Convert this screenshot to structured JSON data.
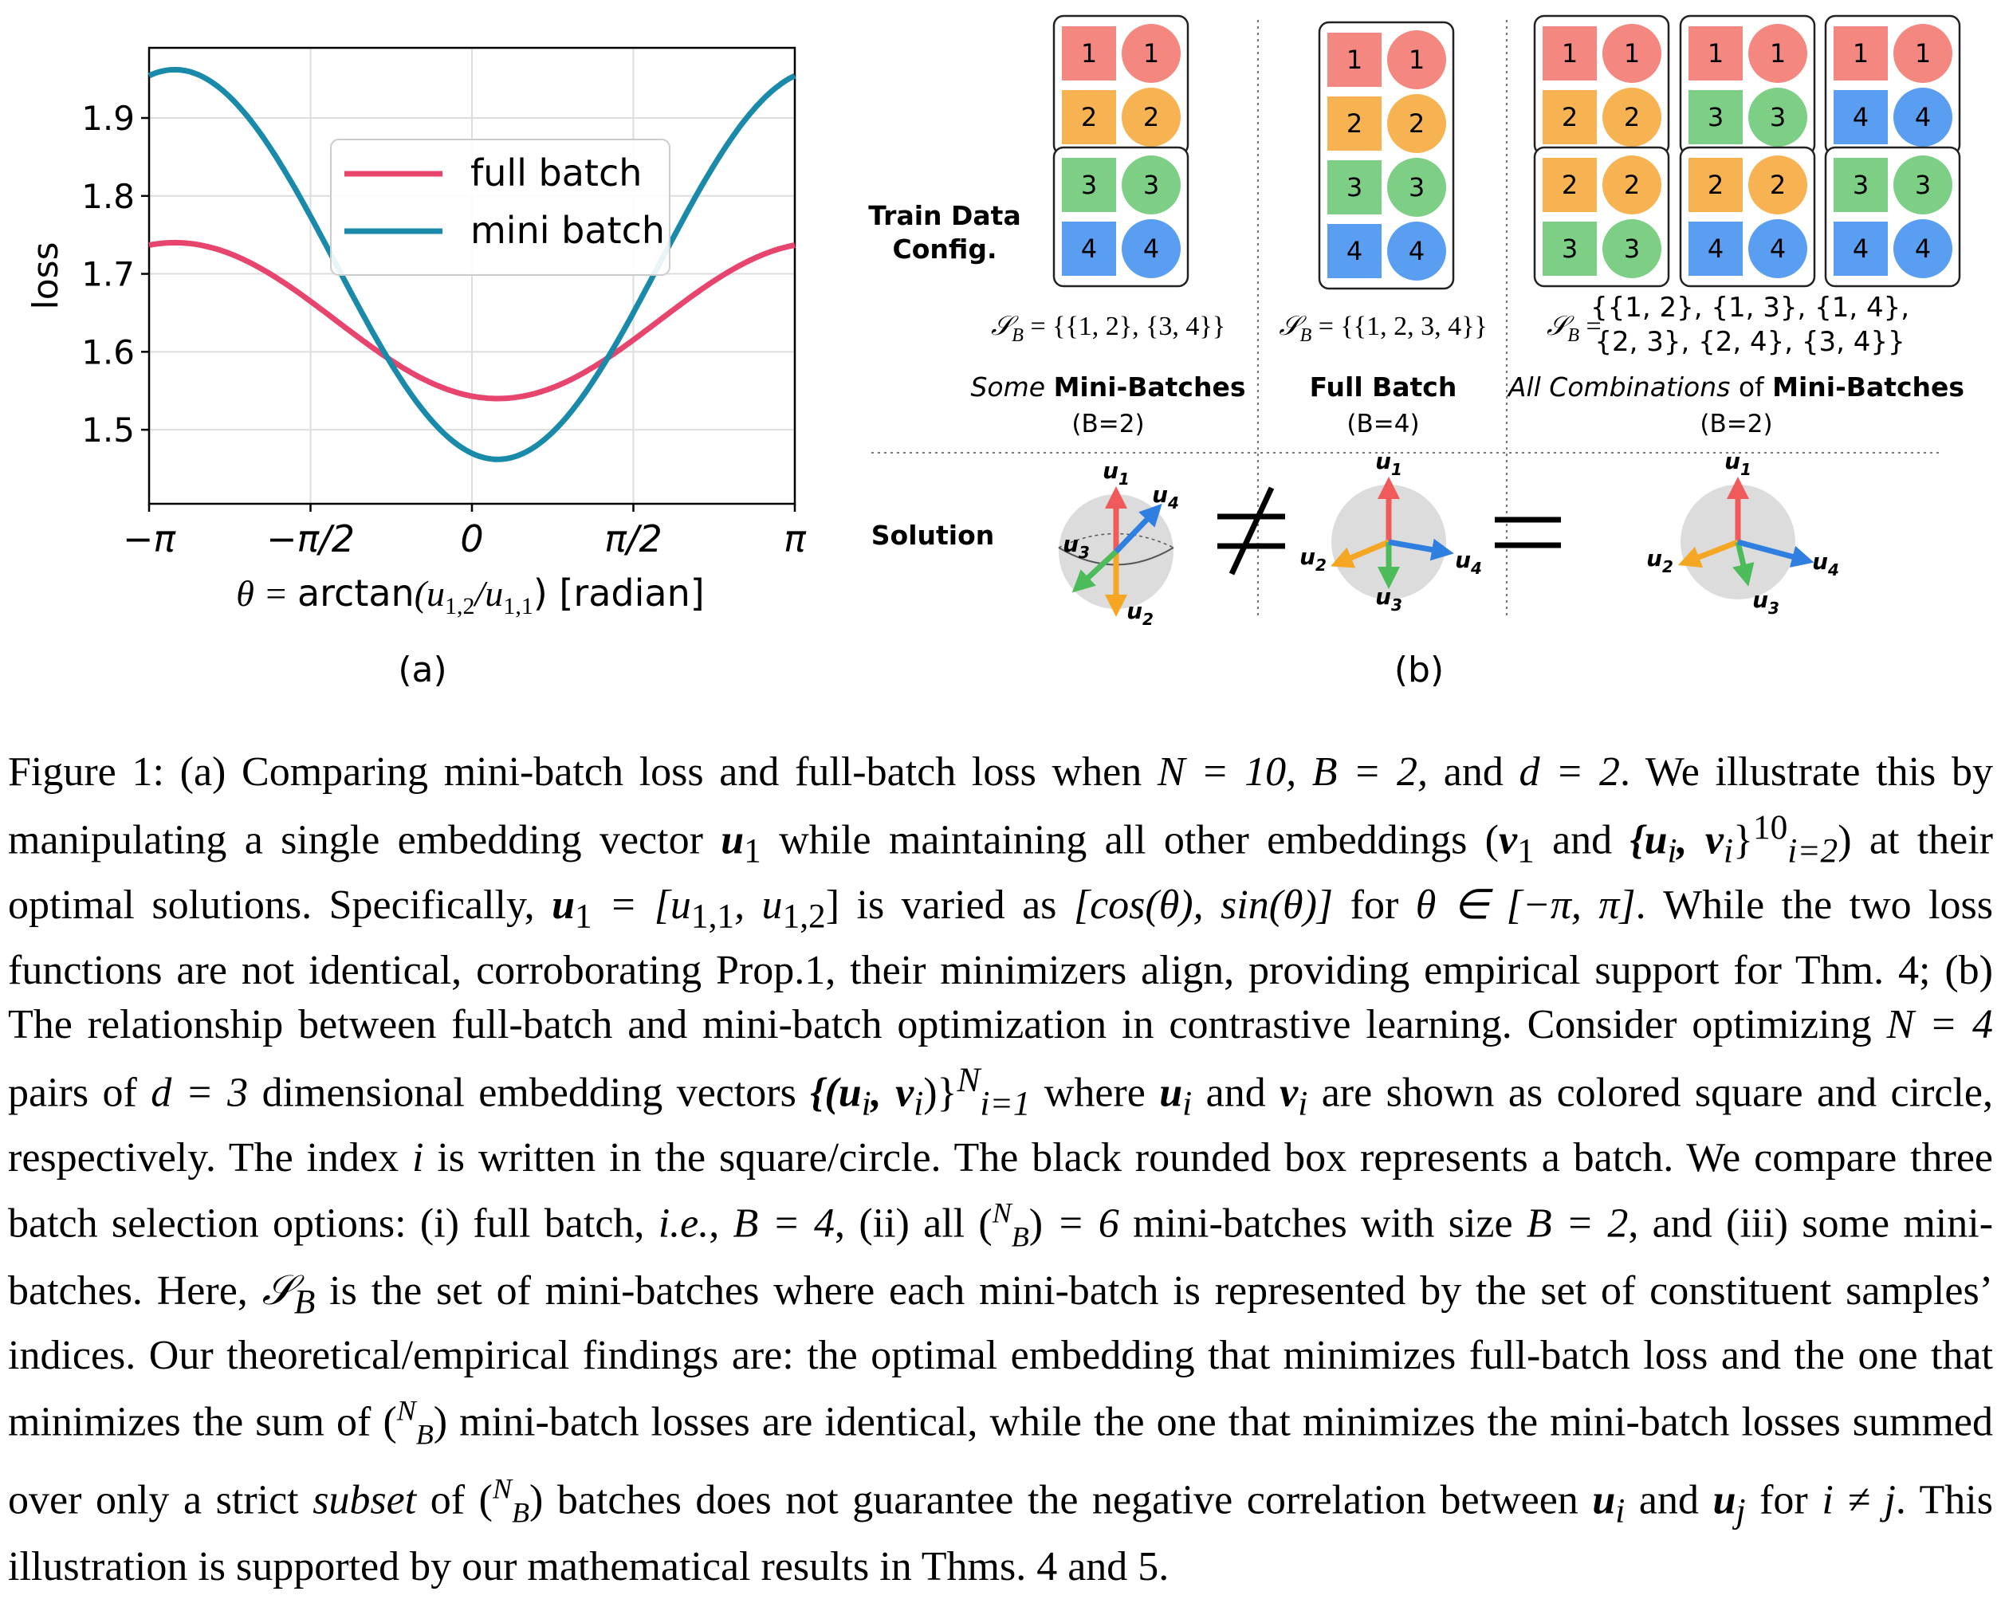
{
  "panel_a": {
    "label": "(a)",
    "chart_data": {
      "type": "line",
      "ylabel": "loss",
      "xlabel_math": "θ = ",
      "xlabel_func": "arctan",
      "xlabel_arg": "(u",
      "xlabel_sub1": "1,2",
      "xlabel_slash": "/u",
      "xlabel_sub2": "1,1",
      "xlabel_unit": ") [radian]",
      "xlim": [
        -3.14159,
        3.14159
      ],
      "ylim": [
        1.405,
        1.99
      ],
      "x_ticks": [
        {
          "value": -3.14159,
          "label": "−π"
        },
        {
          "value": -1.5708,
          "label": "−π/2"
        },
        {
          "value": 0,
          "label": "0"
        },
        {
          "value": 1.5708,
          "label": "π/2"
        },
        {
          "value": 3.14159,
          "label": "π"
        }
      ],
      "y_ticks": [
        {
          "value": 1.5,
          "label": "1.5"
        },
        {
          "value": 1.6,
          "label": "1.6"
        },
        {
          "value": 1.7,
          "label": "1.7"
        },
        {
          "value": 1.8,
          "label": "1.8"
        },
        {
          "value": 1.9,
          "label": "1.9"
        }
      ],
      "grid": true,
      "legend_position": "upper-center",
      "series": [
        {
          "name": "full batch",
          "color": "#e8456e",
          "mean": 1.64,
          "amplitude": 0.1,
          "min_at": 0.25
        },
        {
          "name": "mini batch",
          "color": "#1a8aaa",
          "mean": 1.712,
          "amplitude": 0.25,
          "min_at": 0.25
        }
      ]
    }
  },
  "panel_b": {
    "label": "(b)",
    "row_train_label_1": "Train Data",
    "row_train_label_2": "Config.",
    "row_solution_label": "Solution",
    "colors": {
      "1": "#f4877f",
      "2": "#f7b352",
      "3": "#7dcf85",
      "4": "#5a9ef2"
    },
    "left": {
      "batches": [
        [
          1,
          2
        ],
        [
          3,
          4
        ]
      ],
      "set_lhs": "𝒮",
      "set_sub": "B",
      "set_rhs": " = {{1, 2}, {3, 4}}",
      "caption_it": "Some ",
      "caption_bold": "Mini-Batches",
      "caption_b": "(B=2)"
    },
    "middle": {
      "batches": [
        [
          1,
          2,
          3,
          4
        ]
      ],
      "set_lhs": "𝒮",
      "set_sub": "B",
      "set_rhs": " = {{1, 2, 3, 4}}",
      "caption_bold": "Full Batch",
      "caption_b": "(B=4)"
    },
    "right": {
      "batches": [
        [
          1,
          2
        ],
        [
          1,
          3
        ],
        [
          1,
          4
        ],
        [
          2,
          3
        ],
        [
          2,
          4
        ],
        [
          3,
          4
        ]
      ],
      "set_lhs": "𝒮",
      "set_sub": "B",
      "set_eq": " = ",
      "set_line1": "{{1, 2}, {1, 3}, {1, 4},",
      "set_line2": "{2, 3}, {2, 4}, {3, 4}}",
      "caption_it": "All Combinations",
      "caption_of": " of ",
      "caption_bold": "Mini-Batches",
      "caption_b": "(B=2)"
    },
    "neq_symbol": "≠",
    "eq_symbol": "=",
    "vector_labels": {
      "u": "u",
      "s1": "1",
      "s2": "2",
      "s3": "3",
      "s4": "4"
    }
  },
  "caption": {
    "fig_label": "Figure 1:",
    "p1": " (a) Comparing mini-batch loss and full-batch loss when ",
    "m1": "N = 10, B = 2,",
    "p2": " and ",
    "m2": "d = 2",
    "p3": ". We illustrate this by manipulating a single embedding vector ",
    "m3": "u",
    "m3s": "1",
    "p4": " while maintaining all other embeddings (",
    "m4": "v",
    "m4s": "1",
    "p5": " and ",
    "m5": "{u",
    "m5i": "i",
    "m5b": ", v",
    "m5c": "i",
    "m5d": "}",
    "m5sup": "10",
    "m5sub": "i=2",
    "p6": ") at their optimal solutions. Specifically, ",
    "m6": "u",
    "m6s": "1",
    "m6b": " = [u",
    "m6c": "1,1",
    "m6d": ", u",
    "m6e": "1,2",
    "m6f": "]",
    "p7": " is varied as ",
    "m7": "[cos(θ), sin(θ)]",
    "p8": " for ",
    "m8": "θ ∈ [−π, π]",
    "p9": ". While the two loss functions are not identical, corroborating Prop.1, their minimizers align, providing empirical support for Thm. 4; (b) The relationship between full-batch and mini-batch optimization in contrastive learning. Consider optimizing ",
    "m9": "N = 4",
    "p10": " pairs of ",
    "m10": "d = 3",
    "p11": " dimensional embedding vectors ",
    "m11": "{(u",
    "m11i": "i",
    "m11b": ", v",
    "m11c": "i",
    "m11d": ")}",
    "m11sup": "N",
    "m11sub": "i=1",
    "p12": " where ",
    "m12": "u",
    "m12i": "i",
    "p13": " and ",
    "m13": "v",
    "m13i": "i",
    "p14": " are shown as colored square and circle, respectively. The index ",
    "m14": "i",
    "p15": " is written in the square/circle. The black rounded box represents a batch. We compare three batch selection options: (i) full batch, ",
    "ie": "i.e.",
    "p16": ", ",
    "m16": "B = 4",
    "p17": ", (ii) all ",
    "binom_top": "N",
    "binom_bot": "B",
    "m17": " = 6",
    "p18": " mini-batches with size ",
    "m18": "B = 2",
    "p19": ", and (iii) some mini-batches. Here, ",
    "m19": "𝒮",
    "m19s": "B",
    "p20": " is the set of mini-batches where each mini-batch is represented by the set of constituent samples’ indices. Our theoretical/empirical findings are: the optimal embedding that minimizes full-batch loss and the one that minimizes the sum of ",
    "p21": " mini-batch losses are identical, while the one that minimizes the mini-batch losses summed over only a strict ",
    "subset": "subset",
    "p22": " of ",
    "p23": " batches does not guarantee the negative correlation between ",
    "m23": "u",
    "m23i": "i",
    "p24": " and ",
    "m24": "u",
    "m24j": "j",
    "p25": " for ",
    "m25": "i ≠ j",
    "p26": ". This illustration is supported by our mathematical results in Thms. 4 and 5."
  }
}
